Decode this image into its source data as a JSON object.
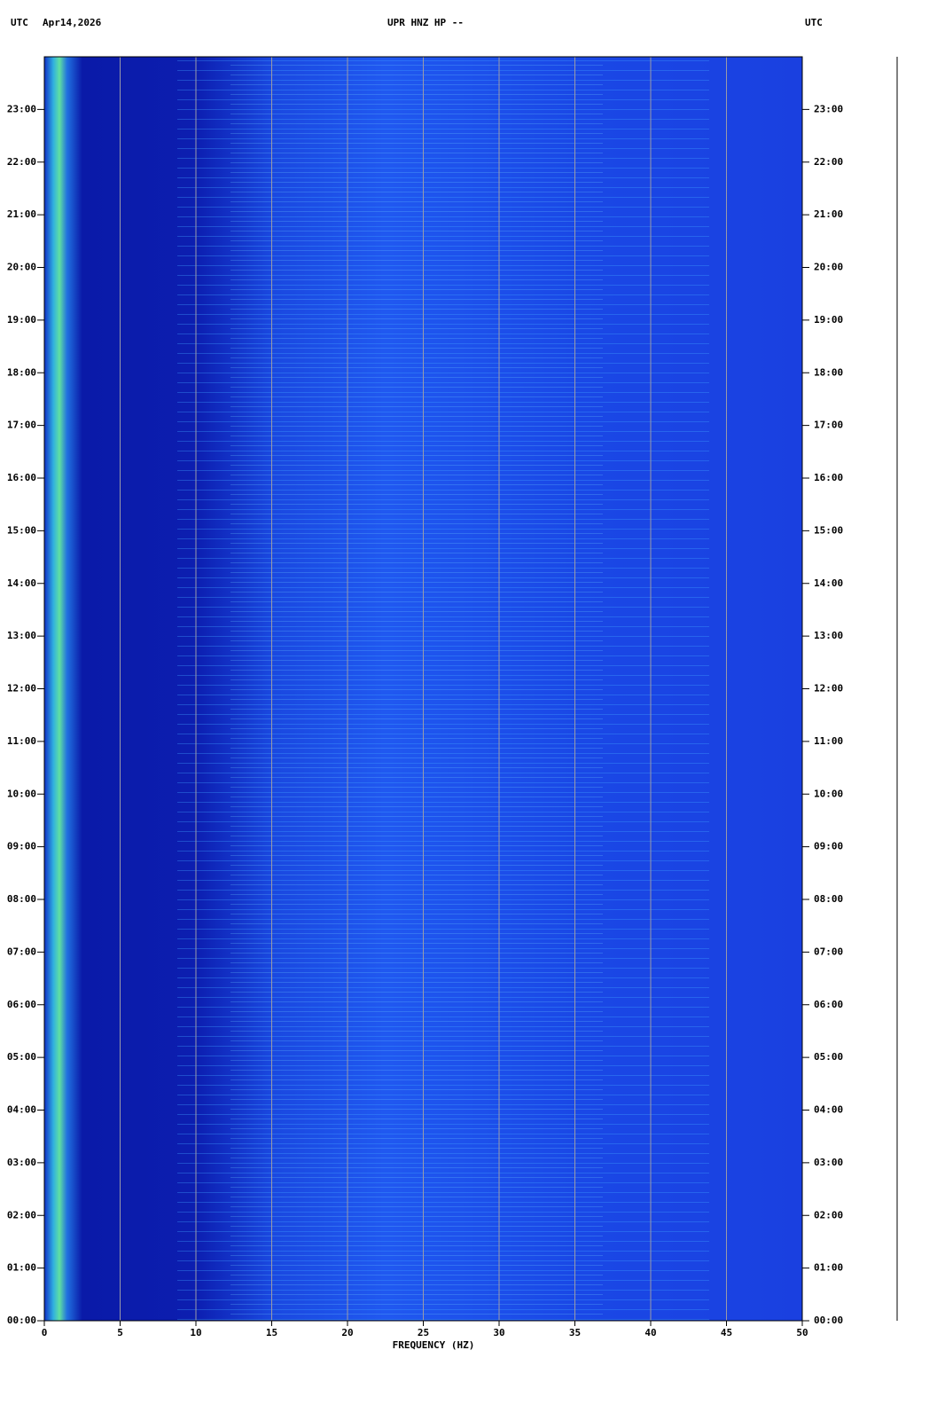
{
  "chart_data": {
    "type": "spectrogram",
    "title": "UPR HNZ HP --",
    "left_label": "UTC",
    "date": "Apr14,2026",
    "right_label": "UTC",
    "x_label": "FREQUENCY (HZ)",
    "xlim": [
      0,
      50
    ],
    "xticks": [
      0,
      5,
      10,
      15,
      20,
      25,
      30,
      35,
      40,
      45,
      50
    ],
    "ylim": [
      0,
      24
    ],
    "yticks": [
      {
        "value": 0,
        "label": "00:00"
      },
      {
        "value": 1,
        "label": "01:00"
      },
      {
        "value": 2,
        "label": "02:00"
      },
      {
        "value": 3,
        "label": "03:00"
      },
      {
        "value": 4,
        "label": "04:00"
      },
      {
        "value": 5,
        "label": "05:00"
      },
      {
        "value": 6,
        "label": "06:00"
      },
      {
        "value": 7,
        "label": "07:00"
      },
      {
        "value": 8,
        "label": "08:00"
      },
      {
        "value": 9,
        "label": "09:00"
      },
      {
        "value": 10,
        "label": "10:00"
      },
      {
        "value": 11,
        "label": "11:00"
      },
      {
        "value": 12,
        "label": "12:00"
      },
      {
        "value": 13,
        "label": "13:00"
      },
      {
        "value": 14,
        "label": "14:00"
      },
      {
        "value": 15,
        "label": "15:00"
      },
      {
        "value": 16,
        "label": "16:00"
      },
      {
        "value": 17,
        "label": "17:00"
      },
      {
        "value": 18,
        "label": "18:00"
      },
      {
        "value": 19,
        "label": "19:00"
      },
      {
        "value": 20,
        "label": "20:00"
      },
      {
        "value": 21,
        "label": "21:00"
      },
      {
        "value": 22,
        "label": "22:00"
      },
      {
        "value": 23,
        "label": "23:00"
      }
    ],
    "grid": true
  }
}
